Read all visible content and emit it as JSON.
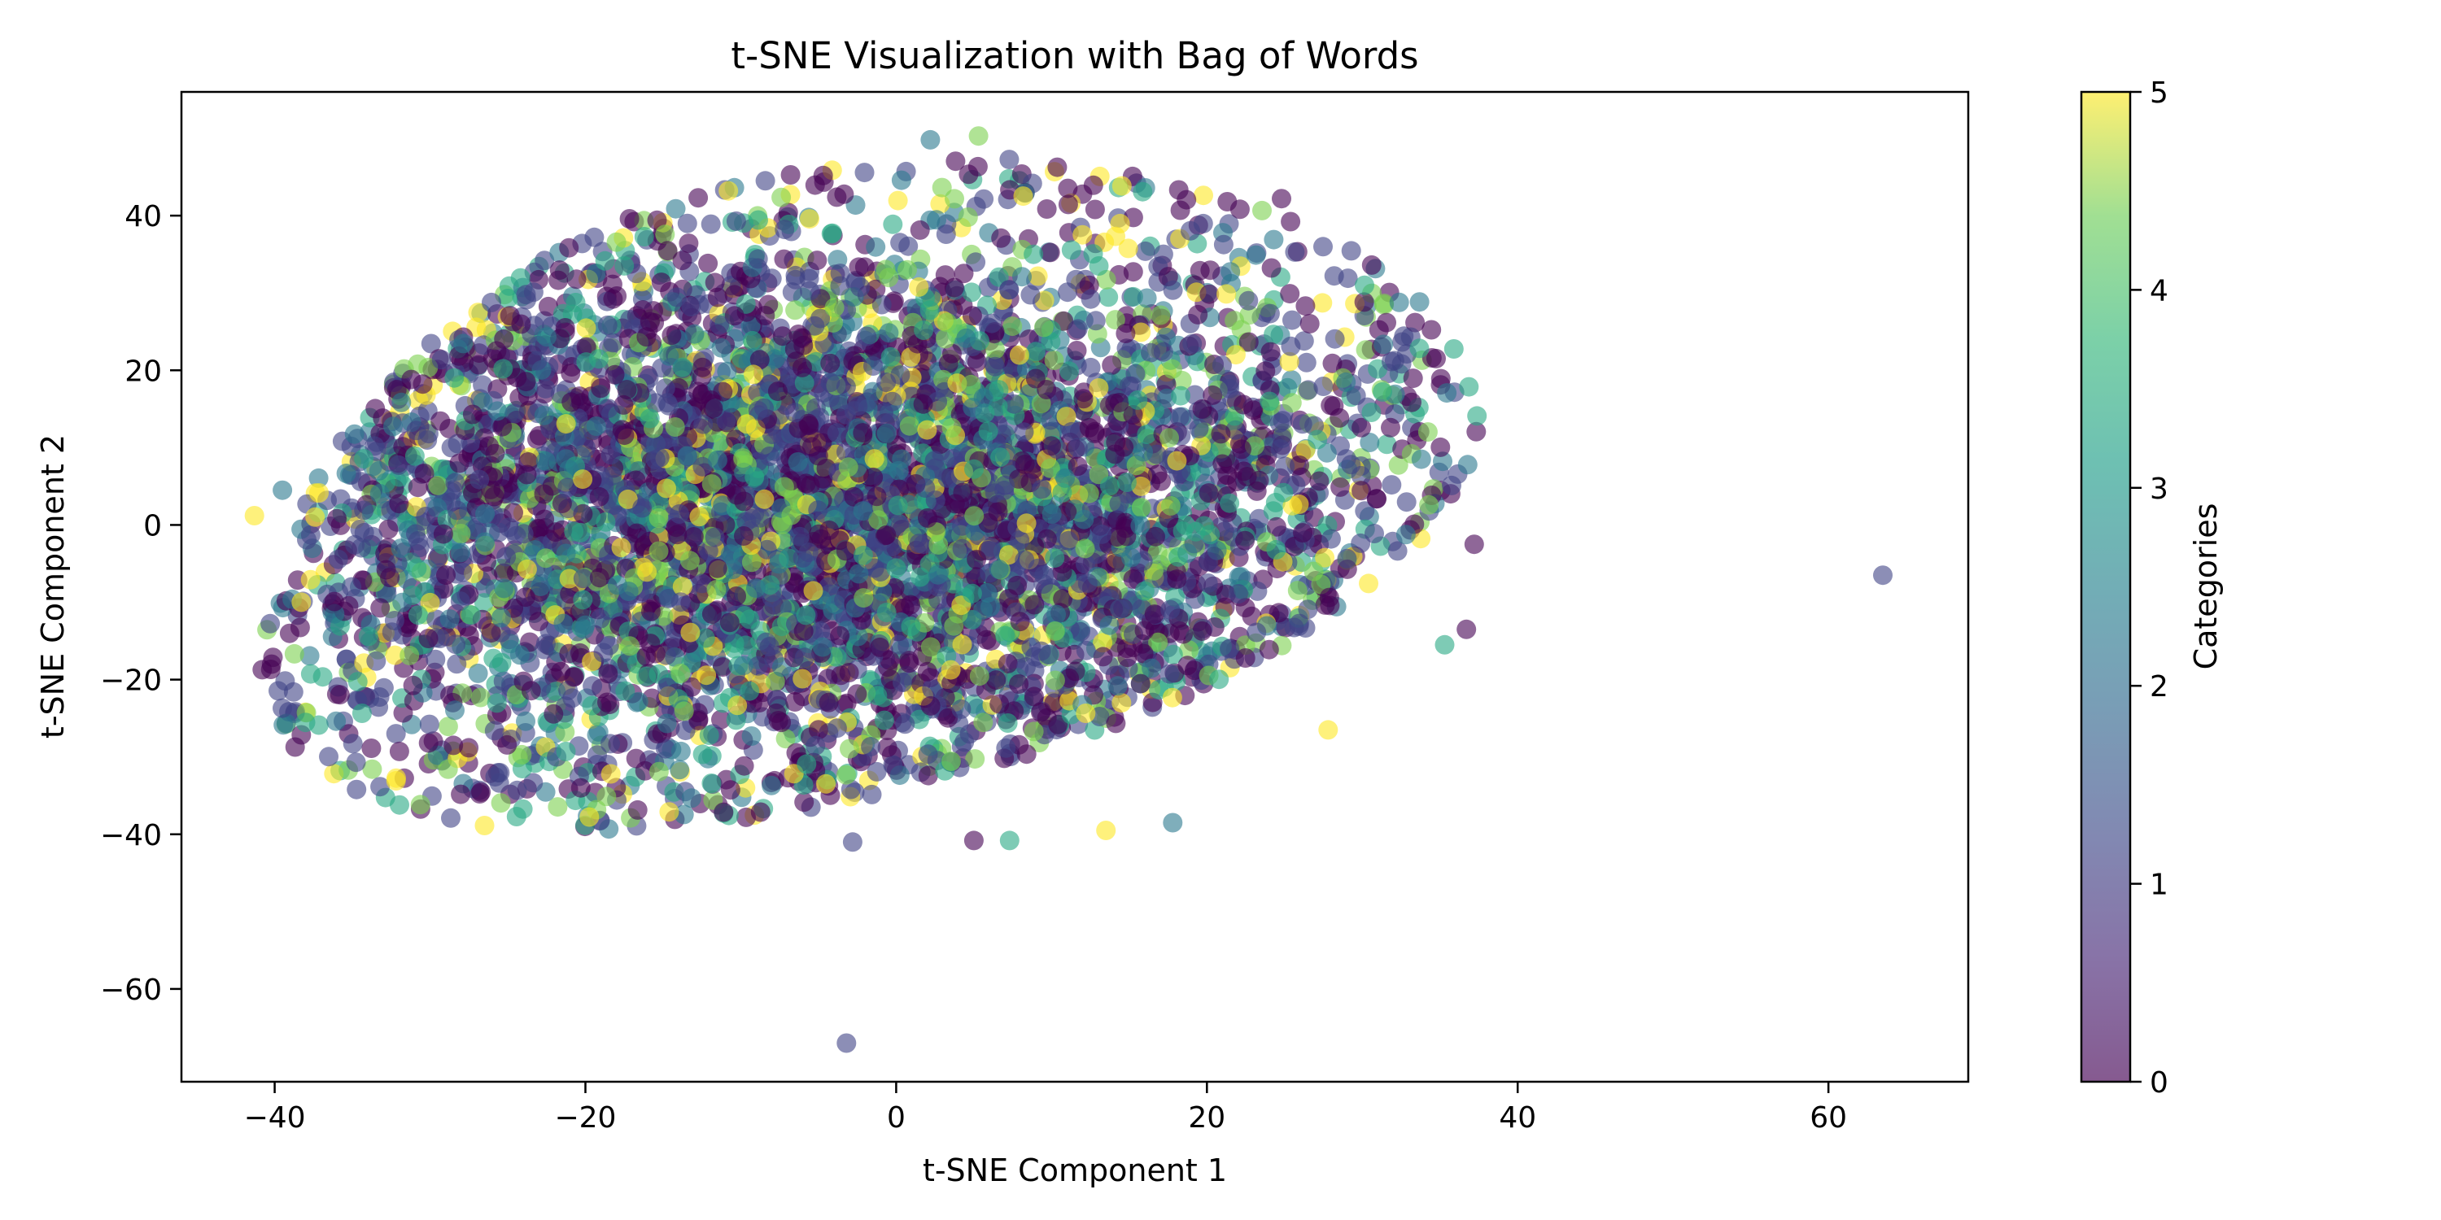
{
  "chart_data": {
    "type": "scatter",
    "title": "t-SNE Visualization with Bag of Words",
    "xlabel": "t-SNE Component 1",
    "ylabel": "t-SNE Component 2",
    "xlim": [
      -46,
      69
    ],
    "ylim": [
      -72,
      56
    ],
    "xticks": [
      -40,
      -20,
      0,
      20,
      40,
      60
    ],
    "yticks": [
      -60,
      -40,
      -20,
      0,
      20,
      40
    ],
    "grid": false,
    "colormap": "viridis",
    "marker_alpha": 0.6,
    "colorbar": {
      "label": "Categories",
      "range": [
        0,
        5
      ],
      "ticks": [
        0,
        1,
        2,
        3,
        4,
        5
      ]
    },
    "cluster": {
      "description_values": "dense cloud of several thousand points spanning roughly x -40..37, y -41..50 with categories 0-5",
      "approx_point_count": 6000
    },
    "points": [
      {
        "x": 63.5,
        "y": -6.5,
        "c": 1
      },
      {
        "x": -3.2,
        "y": -67,
        "c": 1
      },
      {
        "x": -41.3,
        "y": 1.2,
        "c": 5
      },
      {
        "x": 37.2,
        "y": -2.5,
        "c": 0
      },
      {
        "x": 33.8,
        "y": 8.5,
        "c": 2
      },
      {
        "x": 36.7,
        "y": -13.5,
        "c": 0
      },
      {
        "x": 35.3,
        "y": -15.5,
        "c": 3
      },
      {
        "x": -39.5,
        "y": 4.5,
        "c": 2
      },
      {
        "x": -40.2,
        "y": -18,
        "c": 0
      },
      {
        "x": 5.3,
        "y": 50.3,
        "c": 4
      },
      {
        "x": 2.2,
        "y": 49.8,
        "c": 2
      },
      {
        "x": 13.5,
        "y": -39.5,
        "c": 5
      },
      {
        "x": 7.3,
        "y": -40.8,
        "c": 3
      },
      {
        "x": -2.8,
        "y": -41,
        "c": 1
      },
      {
        "x": 5,
        "y": -40.8,
        "c": 0
      },
      {
        "x": 17.8,
        "y": -38.5,
        "c": 2
      },
      {
        "x": -21.3,
        "y": 25.5,
        "c": 0
      },
      {
        "x": -25.3,
        "y": 20.2,
        "c": 3
      },
      {
        "x": -28.5,
        "y": -28.5,
        "c": 0
      },
      {
        "x": 27.8,
        "y": -26.5,
        "c": 5
      },
      {
        "x": 31.3,
        "y": 17.2,
        "c": 3
      },
      {
        "x": -10.8,
        "y": 43.2,
        "c": 5
      },
      {
        "x": 24.8,
        "y": 42.2,
        "c": 0
      },
      {
        "x": -17.5,
        "y": 33.5,
        "c": 3
      },
      {
        "x": -20.3,
        "y": -34,
        "c": 0
      }
    ]
  }
}
